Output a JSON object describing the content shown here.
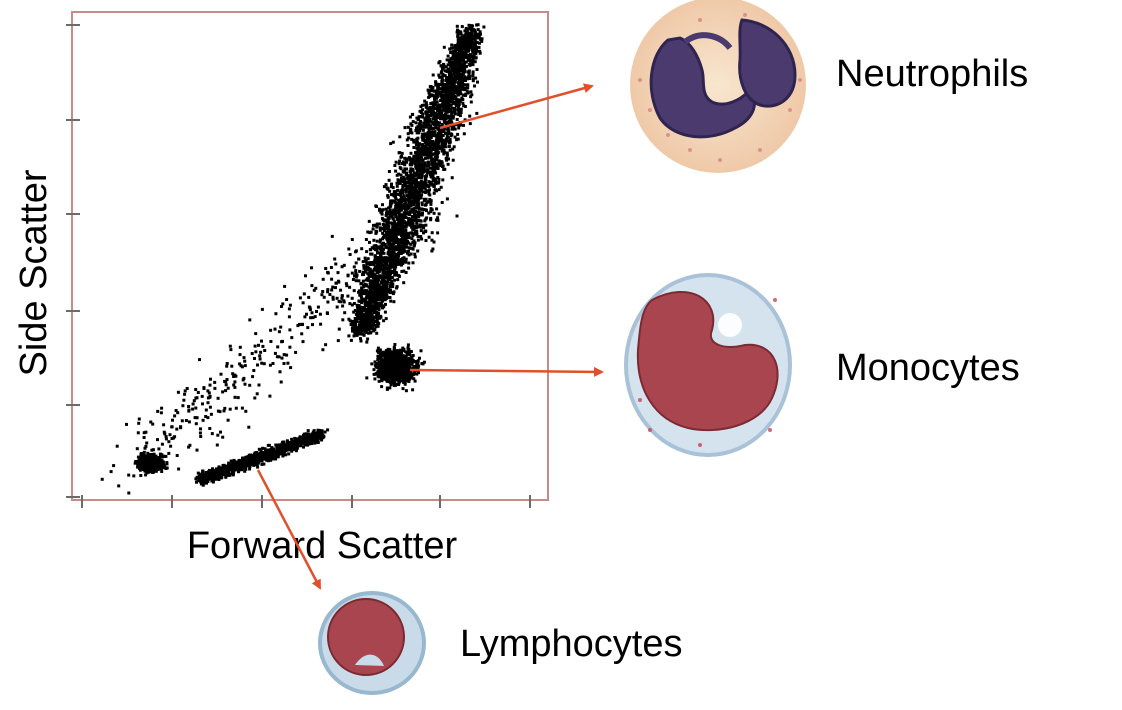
{
  "axes": {
    "x_label": "Forward Scatter",
    "y_label": "Side Scatter"
  },
  "populations": [
    {
      "label": "Neutrophils",
      "icon": "neutrophil-cell-icon"
    },
    {
      "label": "Monocytes",
      "icon": "monocyte-cell-icon"
    },
    {
      "label": "Lymphocytes",
      "icon": "lymphocyte-cell-icon"
    }
  ],
  "colors": {
    "arrow": "#e0502a",
    "plot_frame": "#c98a8a",
    "dots": "#000000"
  }
}
